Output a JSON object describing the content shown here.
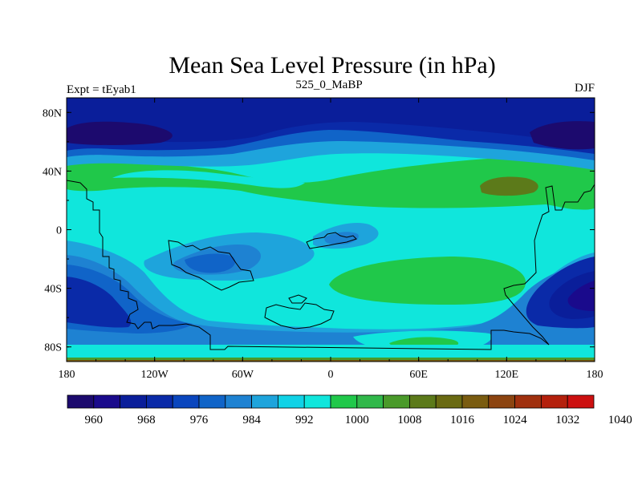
{
  "chart_data": {
    "type": "heatmap",
    "title": "Mean Sea Level Pressure (in hPa)",
    "left_label": "Expt = tEyab1",
    "center_label": "525_0_MaBP",
    "right_label": "DJF",
    "x_ticks": [
      "180",
      "120W",
      "60W",
      "0",
      "60E",
      "120E",
      "180"
    ],
    "y_ticks": [
      "80N",
      "40N",
      "0",
      "40S",
      "80S"
    ],
    "xlim": [
      -180,
      180
    ],
    "ylim": [
      -90,
      90
    ],
    "levels": [
      960,
      964,
      968,
      972,
      976,
      980,
      984,
      988,
      992,
      996,
      1000,
      1004,
      1008,
      1012,
      1016,
      1020,
      1024,
      1028,
      1032,
      1036,
      1040
    ],
    "colorbar_labels": [
      "960",
      "968",
      "976",
      "984",
      "992",
      "1000",
      "1008",
      "1016",
      "1024",
      "1032",
      "1040"
    ],
    "colors": [
      "#1c0a6e",
      "#1a0a8c",
      "#0a1e9a",
      "#0a2aa8",
      "#0a46be",
      "#1064c8",
      "#1e82d2",
      "#1ea4dc",
      "#10d2e6",
      "#10e6dc",
      "#20c84a",
      "#30b84a",
      "#4a9a2a",
      "#5c7a1a",
      "#6a6a12",
      "#7a5c10",
      "#8c4410",
      "#a0300e",
      "#b4200c",
      "#cc1010"
    ]
  }
}
